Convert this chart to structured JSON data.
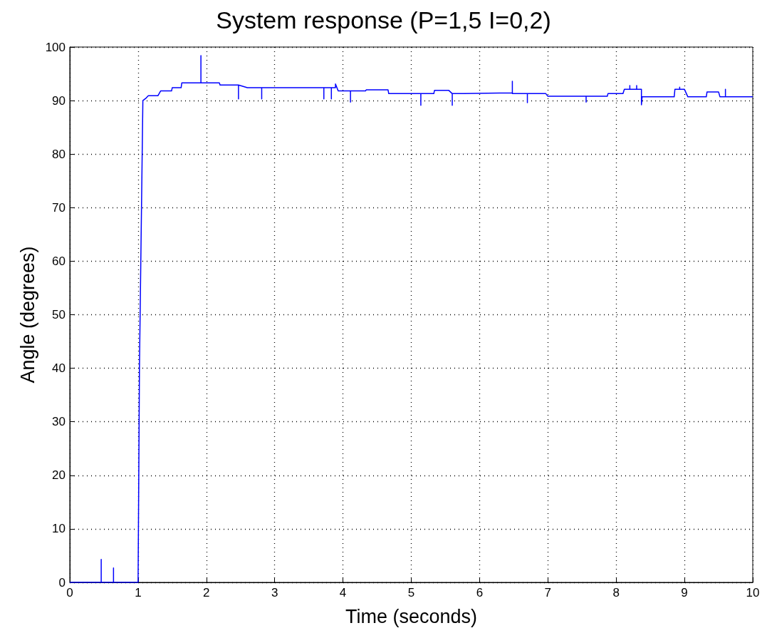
{
  "chart_data": {
    "type": "line",
    "title": "System response (P=1,5 I=0,2)",
    "xlabel": "Time (seconds)",
    "ylabel": "Angle (degrees)",
    "xlim": [
      0,
      10
    ],
    "xticks": [
      0,
      1,
      2,
      3,
      4,
      5,
      6,
      7,
      8,
      9,
      10
    ],
    "ylim": [
      0,
      100
    ],
    "yticks": [
      0,
      10,
      20,
      30,
      40,
      50,
      60,
      70,
      80,
      90,
      100
    ],
    "grid": true,
    "line_style": "solid",
    "marker": "none",
    "series": [
      {
        "color": "#0000ff",
        "x": [
          0,
          0.46,
          0.46,
          0.46,
          0.64,
          0.64,
          0.64,
          1.0,
          1.02,
          1.07,
          1.12,
          1.15,
          1.29,
          1.33,
          1.49,
          1.5,
          1.63,
          1.64,
          1.92,
          1.92,
          1.92,
          2.19,
          2.2,
          2.47,
          2.47,
          2.47,
          2.6,
          2.81,
          2.81,
          2.81,
          3.2,
          3.72,
          3.72,
          3.72,
          3.83,
          3.83,
          3.83,
          3.89,
          3.89,
          3.93,
          4.11,
          4.11,
          4.11,
          4.33,
          4.34,
          4.66,
          4.67,
          5.14,
          5.14,
          5.14,
          5.33,
          5.34,
          5.55,
          5.6,
          5.6,
          5.6,
          5.77,
          6.29,
          6.48,
          6.48,
          6.48,
          6.7,
          6.7,
          6.7,
          6.97,
          7.0,
          7.56,
          7.56,
          7.56,
          7.87,
          7.88,
          8.1,
          8.12,
          8.2,
          8.2,
          8.2,
          8.3,
          8.3,
          8.3,
          8.37,
          8.37,
          8.38,
          8.85,
          8.86,
          8.93,
          8.93,
          8.93,
          9.0,
          9.05,
          9.32,
          9.33,
          9.5,
          9.52,
          9.6,
          9.6,
          9.6,
          9.62,
          10
        ],
        "values": [
          0,
          0,
          4.3,
          0,
          0,
          2.7,
          0,
          0,
          40,
          90,
          90.5,
          90.9,
          90.9,
          91.8,
          91.8,
          92.4,
          92.4,
          93.3,
          93.3,
          98.4,
          93.3,
          93.3,
          92.9,
          92.9,
          90.3,
          92.9,
          92.4,
          92.4,
          90.3,
          92.4,
          92.4,
          92.4,
          90.3,
          92.4,
          92.4,
          90.3,
          92.4,
          92.4,
          93.1,
          91.8,
          91.8,
          89.7,
          91.8,
          91.8,
          92.0,
          92.0,
          91.3,
          91.3,
          89.1,
          91.3,
          91.3,
          91.9,
          91.9,
          91.3,
          89.1,
          91.3,
          91.3,
          91.4,
          91.4,
          93.6,
          91.3,
          91.3,
          89.6,
          91.3,
          91.3,
          90.8,
          90.8,
          89.7,
          90.8,
          90.8,
          91.3,
          91.3,
          92.1,
          92.1,
          92.8,
          92.1,
          92.1,
          92.8,
          92.1,
          92.1,
          89.2,
          90.7,
          90.7,
          92.1,
          92.1,
          92.5,
          92.1,
          92.1,
          90.7,
          90.7,
          91.6,
          91.6,
          90.7,
          90.7,
          92.1,
          90.7,
          90.7,
          90.7
        ]
      }
    ]
  }
}
